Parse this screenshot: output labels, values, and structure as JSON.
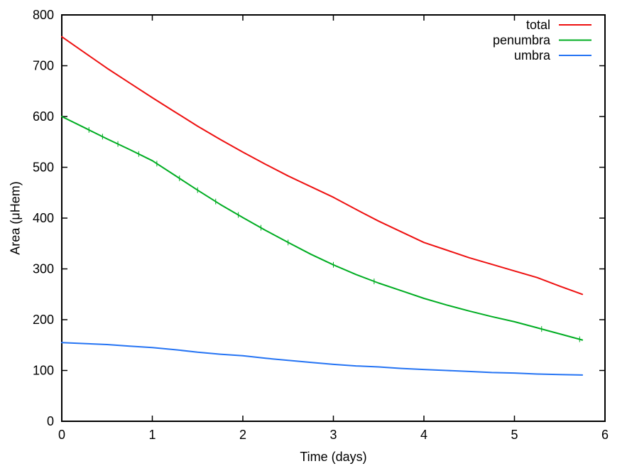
{
  "chart_data": {
    "type": "line",
    "title": "",
    "xlabel": "Time (days)",
    "ylabel": "Area (μHem)",
    "xlim": [
      0,
      6
    ],
    "ylim": [
      0,
      800
    ],
    "x_ticks": [
      0,
      1,
      2,
      3,
      4,
      5,
      6
    ],
    "y_ticks": [
      0,
      100,
      200,
      300,
      400,
      500,
      600,
      700,
      800
    ],
    "grid": false,
    "legend_position": "top-right-inside",
    "background_color": "#ffffff",
    "axis_color": "#000000",
    "x": [
      0,
      0.25,
      0.5,
      0.75,
      1,
      1.25,
      1.5,
      1.75,
      2,
      2.25,
      2.5,
      2.75,
      3,
      3.25,
      3.5,
      3.75,
      4,
      4.25,
      4.5,
      4.75,
      5,
      5.25,
      5.5,
      5.75
    ],
    "series": [
      {
        "name": "total",
        "color": "#ee1111",
        "values": [
          757,
          726,
          695,
          666,
          637,
          609,
          581,
          555,
          530,
          506,
          483,
          462,
          441,
          417,
          394,
          373,
          352,
          337,
          322,
          309,
          296,
          283,
          266,
          250
        ]
      },
      {
        "name": "penumbra",
        "color": "#00ad22",
        "values": [
          600,
          578,
          556,
          535,
          513,
          484,
          455,
          427,
          401,
          376,
          352,
          329,
          308,
          289,
          272,
          257,
          242,
          229,
          217,
          206,
          196,
          184,
          172,
          160
        ],
        "error_tick_times": [
          0.3,
          0.45,
          0.62,
          0.85,
          1.05,
          1.3,
          1.5,
          1.7,
          1.95,
          2.2,
          2.5,
          3.0,
          3.45,
          5.3,
          5.72
        ]
      },
      {
        "name": "umbra",
        "color": "#2574f4",
        "values": [
          155,
          153,
          151,
          148,
          145,
          141,
          136,
          132,
          129,
          124,
          120,
          116,
          112,
          109,
          107,
          104,
          102,
          100,
          98,
          96,
          95,
          93,
          92,
          91
        ]
      }
    ]
  }
}
